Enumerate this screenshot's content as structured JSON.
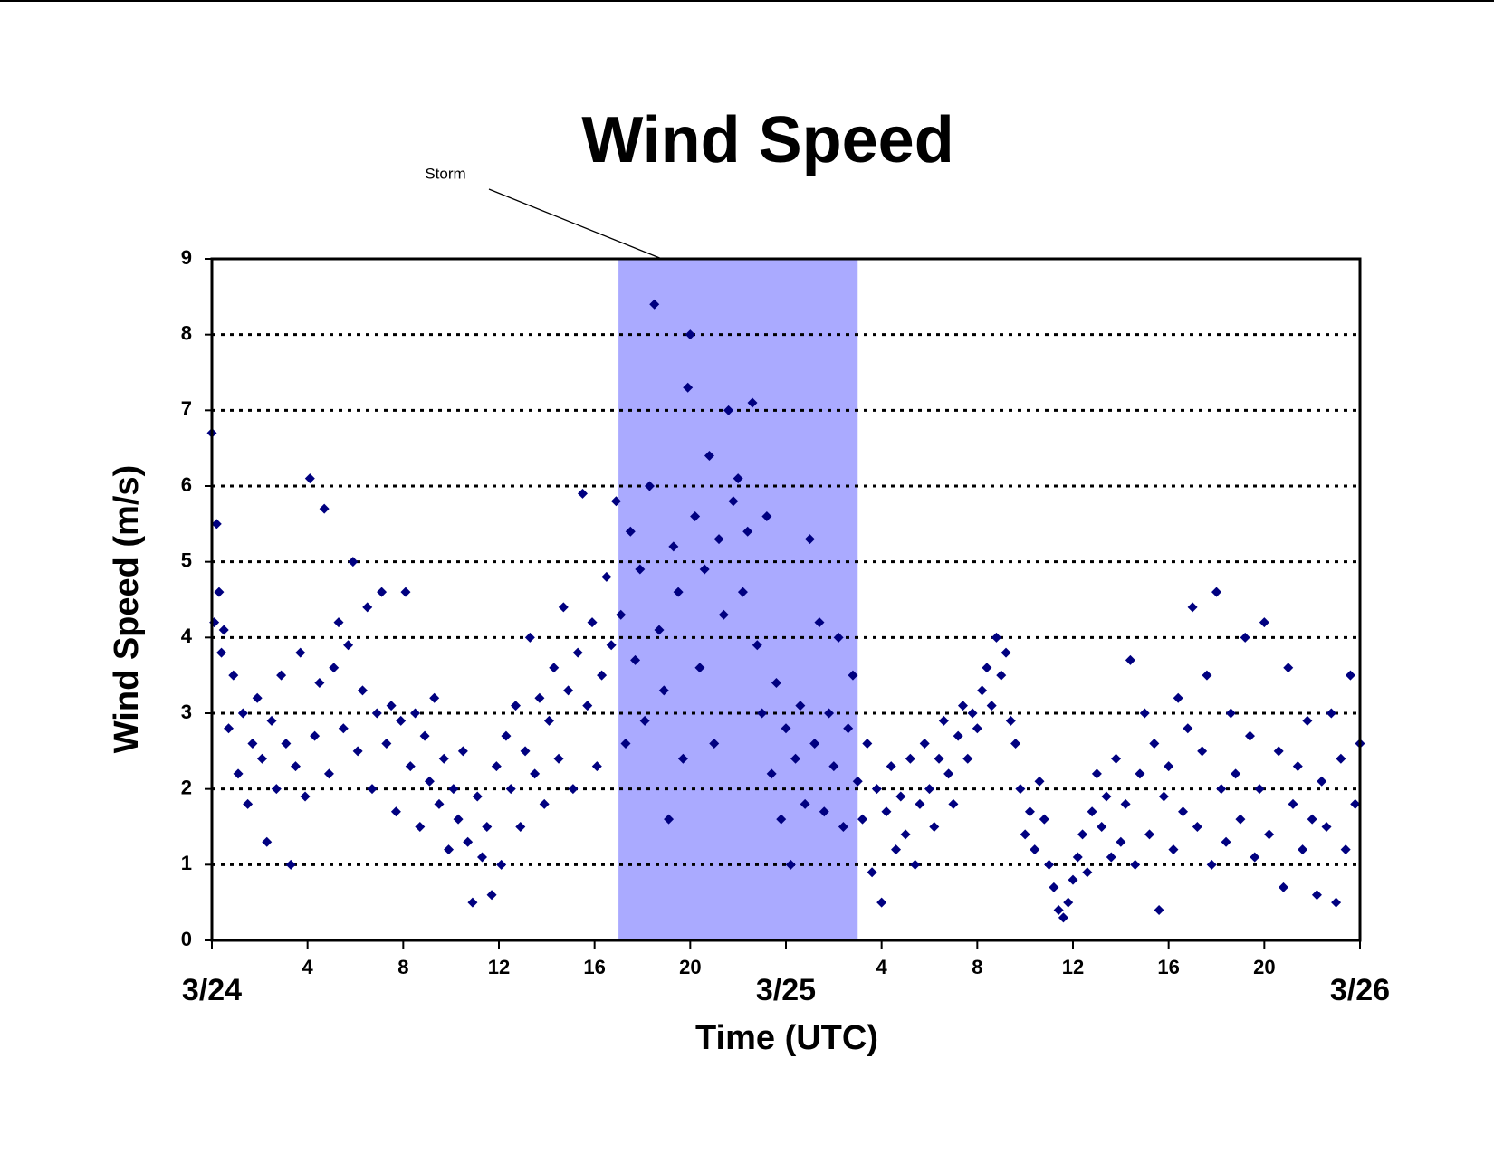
{
  "chart_data": {
    "type": "scatter",
    "title": "Wind Speed",
    "annotation": "Storm",
    "highlight": [
      17,
      27
    ],
    "highlight_color": "#aaaaff",
    "xlabel": "Time (UTC)",
    "ylabel": "Wind Speed (m/s)",
    "color": "#000080",
    "grid": true,
    "xlim": [
      0,
      48
    ],
    "ylim": [
      0,
      9
    ],
    "yticks": [
      0,
      1,
      2,
      3,
      4,
      5,
      6,
      7,
      8,
      9
    ],
    "xticks": [
      {
        "value": 0,
        "label": "3/24"
      },
      4,
      8,
      12,
      16,
      20,
      {
        "value": 24,
        "label": "3/25"
      },
      {
        "value": 28,
        "label": "4"
      },
      {
        "value": 32,
        "label": "8"
      },
      {
        "value": 36,
        "label": "12"
      },
      {
        "value": 40,
        "label": "16"
      },
      {
        "value": 44,
        "label": "20"
      },
      {
        "value": 48,
        "label": "3/26"
      }
    ],
    "x": [
      0.0,
      0.1,
      0.2,
      0.3,
      0.4,
      0.5,
      0.7,
      0.9,
      1.1,
      1.3,
      1.5,
      1.7,
      1.9,
      2.1,
      2.3,
      2.5,
      2.7,
      2.9,
      3.1,
      3.3,
      3.5,
      3.7,
      3.9,
      4.1,
      4.3,
      4.5,
      4.7,
      4.9,
      5.1,
      5.3,
      5.5,
      5.7,
      5.9,
      6.1,
      6.3,
      6.5,
      6.7,
      6.9,
      7.1,
      7.3,
      7.5,
      7.7,
      7.9,
      8.1,
      8.3,
      8.5,
      8.7,
      8.9,
      9.1,
      9.3,
      9.5,
      9.7,
      9.9,
      10.1,
      10.3,
      10.5,
      10.7,
      10.9,
      11.1,
      11.3,
      11.5,
      11.7,
      11.9,
      12.1,
      12.3,
      12.5,
      12.7,
      12.9,
      13.1,
      13.3,
      13.5,
      13.7,
      13.9,
      14.1,
      14.3,
      14.5,
      14.7,
      14.9,
      15.1,
      15.3,
      15.5,
      15.7,
      15.9,
      16.1,
      16.3,
      16.5,
      16.7,
      16.9,
      17.1,
      17.3,
      17.5,
      17.7,
      17.9,
      18.1,
      18.3,
      18.5,
      18.7,
      18.9,
      19.1,
      19.3,
      19.5,
      19.7,
      19.9,
      20.0,
      20.2,
      20.4,
      20.6,
      20.8,
      21.0,
      21.2,
      21.4,
      21.6,
      21.8,
      22.0,
      22.2,
      22.4,
      22.6,
      22.8,
      23.0,
      23.2,
      23.4,
      23.6,
      23.8,
      24.0,
      24.2,
      24.4,
      24.6,
      24.8,
      25.0,
      25.2,
      25.4,
      25.6,
      25.8,
      26.0,
      26.2,
      26.4,
      26.6,
      26.8,
      27.0,
      27.2,
      27.4,
      27.6,
      27.8,
      28.0,
      28.2,
      28.4,
      28.6,
      28.8,
      29.0,
      29.2,
      29.4,
      29.6,
      29.8,
      30.0,
      30.2,
      30.4,
      30.6,
      30.8,
      31.0,
      31.2,
      31.4,
      31.6,
      31.8,
      32.0,
      32.2,
      32.4,
      32.6,
      32.8,
      33.0,
      33.2,
      33.4,
      33.6,
      33.8,
      34.0,
      34.2,
      34.4,
      34.6,
      34.8,
      35.0,
      35.2,
      35.4,
      35.6,
      35.8,
      36.0,
      36.2,
      36.4,
      36.6,
      36.8,
      37.0,
      37.2,
      37.4,
      37.6,
      37.8,
      38.0,
      38.2,
      38.4,
      38.6,
      38.8,
      39.0,
      39.2,
      39.4,
      39.6,
      39.8,
      40.0,
      40.2,
      40.4,
      40.6,
      40.8,
      41.0,
      41.2,
      41.4,
      41.6,
      41.8,
      42.0,
      42.2,
      42.4,
      42.6,
      42.8,
      43.0,
      43.2,
      43.4,
      43.6,
      43.8,
      44.0,
      44.2,
      44.6,
      44.8,
      45.0,
      45.2,
      45.4,
      45.6,
      45.8,
      46.0,
      46.2,
      46.4,
      46.6,
      46.8,
      47.0,
      47.2,
      47.4,
      47.6,
      47.8,
      48.0
    ],
    "values": [
      6.7,
      4.2,
      5.5,
      4.6,
      3.8,
      4.1,
      2.8,
      3.5,
      2.2,
      3.0,
      1.8,
      2.6,
      3.2,
      2.4,
      1.3,
      2.9,
      2.0,
      3.5,
      2.6,
      1.0,
      2.3,
      3.8,
      1.9,
      6.1,
      2.7,
      3.4,
      5.7,
      2.2,
      3.6,
      4.2,
      2.8,
      3.9,
      5.0,
      2.5,
      3.3,
      4.4,
      2.0,
      3.0,
      4.6,
      2.6,
      3.1,
      1.7,
      2.9,
      4.6,
      2.3,
      3.0,
      1.5,
      2.7,
      2.1,
      3.2,
      1.8,
      2.4,
      1.2,
      2.0,
      1.6,
      2.5,
      1.3,
      0.5,
      1.9,
      1.1,
      1.5,
      0.6,
      2.3,
      1.0,
      2.7,
      2.0,
      3.1,
      1.5,
      2.5,
      4.0,
      2.2,
      3.2,
      1.8,
      2.9,
      3.6,
      2.4,
      4.4,
      3.3,
      2.0,
      3.8,
      5.9,
      3.1,
      4.2,
      2.3,
      3.5,
      4.8,
      3.9,
      5.8,
      4.3,
      2.6,
      5.4,
      3.7,
      4.9,
      2.9,
      6.0,
      8.4,
      4.1,
      3.3,
      1.6,
      5.2,
      4.6,
      2.4,
      7.3,
      8.0,
      5.6,
      3.6,
      4.9,
      6.4,
      2.6,
      5.3,
      4.3,
      7.0,
      5.8,
      6.1,
      4.6,
      5.4,
      7.1,
      3.9,
      3.0,
      5.6,
      2.2,
      3.4,
      1.6,
      2.8,
      1.0,
      2.4,
      3.1,
      1.8,
      5.3,
      2.6,
      4.2,
      1.7,
      3.0,
      2.3,
      4.0,
      1.5,
      2.8,
      3.5,
      2.1,
      1.6,
      2.6,
      0.9,
      2.0,
      0.5,
      1.7,
      2.3,
      1.2,
      1.9,
      1.4,
      2.4,
      1.0,
      1.8,
      2.6,
      2.0,
      1.5,
      2.4,
      2.9,
      2.2,
      1.8,
      2.7,
      3.1,
      2.4,
      3.0,
      2.8,
      3.3,
      3.6,
      3.1,
      4.0,
      3.5,
      3.8,
      2.9,
      2.6,
      2.0,
      1.4,
      1.7,
      1.2,
      2.1,
      1.6,
      1.0,
      0.7,
      0.4,
      0.3,
      0.5,
      0.8,
      1.1,
      1.4,
      0.9,
      1.7,
      2.2,
      1.5,
      1.9,
      1.1,
      2.4,
      1.3,
      1.8,
      3.7,
      1.0,
      2.2,
      3.0,
      1.4,
      2.6,
      0.4,
      1.9,
      2.3,
      1.2,
      3.2,
      1.7,
      2.8,
      4.4,
      1.5,
      2.5,
      3.5,
      1.0,
      4.6,
      2.0,
      1.3,
      3.0,
      2.2,
      1.6,
      4.0,
      2.7,
      1.1,
      2.0,
      4.2,
      1.4,
      2.5,
      0.7,
      3.6,
      1.8,
      2.3,
      1.2,
      2.9,
      1.6,
      0.6,
      2.1,
      1.5,
      3.0,
      0.5,
      2.4,
      1.2,
      3.5,
      1.8,
      2.6
    ]
  }
}
